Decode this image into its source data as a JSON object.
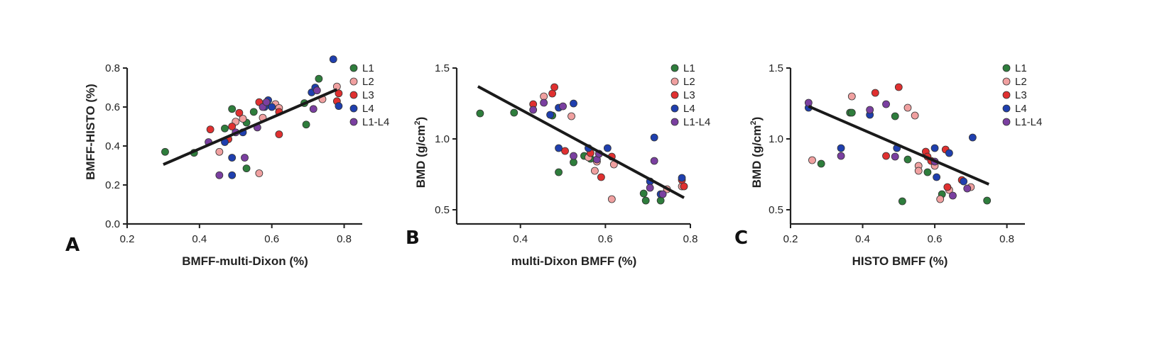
{
  "figure": {
    "colors": {
      "L1": "#2e7d3c",
      "L2": "#f0a0a0",
      "L3": "#e03030",
      "L4": "#1f3fae",
      "L1-L4": "#7a3fa0",
      "axis": "#222222",
      "fit": "#1a1a1a"
    }
  },
  "chart_data": [
    {
      "type": "scatter",
      "panel": "A",
      "xlabel": "BMFF-multi-Dixon (%)",
      "ylabel": "BMFF-HISTO (%)",
      "xlim": [
        0.2,
        0.85
      ],
      "ylim": [
        0.0,
        0.8
      ],
      "xticks": [
        "0.2",
        "0.4",
        "0.6",
        "0.8"
      ],
      "yticks": [
        "0.0",
        "0.2",
        "0.4",
        "0.6",
        "0.8"
      ],
      "xtick_values": [
        0.2,
        0.4,
        0.6,
        0.8
      ],
      "ytick_values": [
        0.0,
        0.2,
        0.4,
        0.6,
        0.8
      ],
      "legend": [
        "L1",
        "L2",
        "L3",
        "L4",
        "L1-L4"
      ],
      "legend_position": "top-right",
      "fit_line": {
        "x": [
          0.3,
          0.78
        ],
        "y": [
          0.305,
          0.69
        ]
      },
      "series": [
        {
          "name": "L1",
          "points": [
            [
              0.305,
              0.37
            ],
            [
              0.385,
              0.365
            ],
            [
              0.47,
              0.49
            ],
            [
              0.49,
              0.59
            ],
            [
              0.53,
              0.285
            ],
            [
              0.53,
              0.52
            ],
            [
              0.55,
              0.575
            ],
            [
              0.69,
              0.62
            ],
            [
              0.695,
              0.51
            ],
            [
              0.73,
              0.745
            ]
          ]
        },
        {
          "name": "L2",
          "points": [
            [
              0.455,
              0.37
            ],
            [
              0.5,
              0.525
            ],
            [
              0.52,
              0.54
            ],
            [
              0.565,
              0.26
            ],
            [
              0.575,
              0.545
            ],
            [
              0.61,
              0.615
            ],
            [
              0.62,
              0.595
            ],
            [
              0.74,
              0.64
            ],
            [
              0.78,
              0.705
            ]
          ]
        },
        {
          "name": "L3",
          "points": [
            [
              0.43,
              0.485
            ],
            [
              0.48,
              0.435
            ],
            [
              0.49,
              0.5
            ],
            [
              0.51,
              0.57
            ],
            [
              0.565,
              0.625
            ],
            [
              0.62,
              0.46
            ],
            [
              0.62,
              0.575
            ],
            [
              0.78,
              0.63
            ],
            [
              0.785,
              0.67
            ]
          ]
        },
        {
          "name": "L4",
          "points": [
            [
              0.47,
              0.42
            ],
            [
              0.49,
              0.34
            ],
            [
              0.49,
              0.25
            ],
            [
              0.52,
              0.47
            ],
            [
              0.58,
              0.6
            ],
            [
              0.59,
              0.635
            ],
            [
              0.6,
              0.6
            ],
            [
              0.71,
              0.675
            ],
            [
              0.72,
              0.7
            ],
            [
              0.77,
              0.845
            ],
            [
              0.785,
              0.605
            ]
          ]
        },
        {
          "name": "L1-L4",
          "points": [
            [
              0.425,
              0.42
            ],
            [
              0.455,
              0.25
            ],
            [
              0.5,
              0.47
            ],
            [
              0.525,
              0.34
            ],
            [
              0.56,
              0.495
            ],
            [
              0.575,
              0.6
            ],
            [
              0.585,
              0.625
            ],
            [
              0.715,
              0.59
            ],
            [
              0.725,
              0.685
            ]
          ]
        }
      ]
    },
    {
      "type": "scatter",
      "panel": "B",
      "xlabel": "multi-Dixon BMFF (%)",
      "ylabel_main": "BMD (g/cm",
      "ylabel_sup": "2",
      "ylabel_end": ")",
      "xlim": [
        0.25,
        0.8
      ],
      "ylim": [
        0.4,
        1.5
      ],
      "xticks": [
        "0.4",
        "0.6",
        "0.8"
      ],
      "yticks": [
        "0.5",
        "1.0",
        "1.5"
      ],
      "xtick_values": [
        0.4,
        0.6,
        0.8
      ],
      "ytick_values": [
        0.5,
        1.0,
        1.5
      ],
      "legend": [
        "L1",
        "L2",
        "L3",
        "L4",
        "L1-L4"
      ],
      "legend_position": "top-right",
      "fit_line": {
        "x": [
          0.3,
          0.785
        ],
        "y": [
          1.37,
          0.585
        ]
      },
      "series": [
        {
          "name": "L1",
          "points": [
            [
              0.305,
              1.18
            ],
            [
              0.385,
              1.185
            ],
            [
              0.475,
              1.165
            ],
            [
              0.49,
              0.765
            ],
            [
              0.525,
              0.835
            ],
            [
              0.55,
              0.88
            ],
            [
              0.565,
              0.86
            ],
            [
              0.69,
              0.615
            ],
            [
              0.695,
              0.565
            ],
            [
              0.73,
              0.565
            ]
          ]
        },
        {
          "name": "L2",
          "points": [
            [
              0.455,
              1.3
            ],
            [
              0.52,
              1.16
            ],
            [
              0.56,
              0.87
            ],
            [
              0.575,
              0.775
            ],
            [
              0.58,
              0.84
            ],
            [
              0.615,
              0.575
            ],
            [
              0.62,
              0.82
            ],
            [
              0.745,
              0.645
            ],
            [
              0.78,
              0.665
            ]
          ]
        },
        {
          "name": "L3",
          "points": [
            [
              0.43,
              1.245
            ],
            [
              0.475,
              1.32
            ],
            [
              0.48,
              1.365
            ],
            [
              0.505,
              0.915
            ],
            [
              0.565,
              0.9
            ],
            [
              0.59,
              0.73
            ],
            [
              0.615,
              0.875
            ],
            [
              0.78,
              0.71
            ],
            [
              0.785,
              0.665
            ]
          ]
        },
        {
          "name": "L4",
          "points": [
            [
              0.47,
              1.17
            ],
            [
              0.49,
              0.935
            ],
            [
              0.49,
              1.22
            ],
            [
              0.525,
              1.25
            ],
            [
              0.56,
              0.935
            ],
            [
              0.585,
              0.895
            ],
            [
              0.605,
              0.935
            ],
            [
              0.705,
              0.7
            ],
            [
              0.715,
              1.01
            ],
            [
              0.73,
              0.61
            ],
            [
              0.78,
              0.725
            ]
          ]
        },
        {
          "name": "L1-L4",
          "points": [
            [
              0.43,
              1.205
            ],
            [
              0.455,
              1.255
            ],
            [
              0.5,
              1.23
            ],
            [
              0.525,
              0.88
            ],
            [
              0.58,
              0.855
            ],
            [
              0.585,
              0.895
            ],
            [
              0.705,
              0.655
            ],
            [
              0.715,
              0.845
            ],
            [
              0.735,
              0.61
            ]
          ]
        }
      ]
    },
    {
      "type": "scatter",
      "panel": "C",
      "xlabel": "HISTO BMFF (%)",
      "ylabel_main": "BMD (g/cm",
      "ylabel_sup": "2",
      "ylabel_end": ")",
      "xlim": [
        0.2,
        0.85
      ],
      "ylim": [
        0.4,
        1.5
      ],
      "xticks": [
        "0.2",
        "0.4",
        "0.6",
        "0.8"
      ],
      "yticks": [
        "0.5",
        "1.0",
        "1.5"
      ],
      "xtick_values": [
        0.2,
        0.4,
        0.6,
        0.8
      ],
      "ytick_values": [
        0.5,
        1.0,
        1.5
      ],
      "legend": [
        "L1",
        "L2",
        "L3",
        "L4",
        "L1-L4"
      ],
      "legend_position": "top-right",
      "fit_line": {
        "x": [
          0.25,
          0.75
        ],
        "y": [
          1.23,
          0.68
        ]
      },
      "series": [
        {
          "name": "L1",
          "points": [
            [
              0.285,
              0.825
            ],
            [
              0.365,
              1.185
            ],
            [
              0.37,
              1.185
            ],
            [
              0.49,
              1.16
            ],
            [
              0.51,
              0.56
            ],
            [
              0.525,
              0.855
            ],
            [
              0.58,
              0.765
            ],
            [
              0.62,
              0.61
            ],
            [
              0.745,
              0.565
            ]
          ]
        },
        {
          "name": "L2",
          "points": [
            [
              0.26,
              0.85
            ],
            [
              0.37,
              1.3
            ],
            [
              0.525,
              1.22
            ],
            [
              0.545,
              1.165
            ],
            [
              0.555,
              0.81
            ],
            [
              0.555,
              0.775
            ],
            [
              0.6,
              0.81
            ],
            [
              0.615,
              0.575
            ],
            [
              0.64,
              0.64
            ],
            [
              0.7,
              0.66
            ]
          ]
        },
        {
          "name": "L3",
          "points": [
            [
              0.435,
              1.325
            ],
            [
              0.465,
              0.88
            ],
            [
              0.5,
              1.365
            ],
            [
              0.575,
              0.91
            ],
            [
              0.58,
              0.875
            ],
            [
              0.59,
              0.845
            ],
            [
              0.635,
              0.66
            ],
            [
              0.63,
              0.925
            ],
            [
              0.675,
              0.71
            ]
          ]
        },
        {
          "name": "L4",
          "points": [
            [
              0.25,
              1.22
            ],
            [
              0.34,
              0.935
            ],
            [
              0.42,
              1.17
            ],
            [
              0.495,
              0.935
            ],
            [
              0.6,
              0.935
            ],
            [
              0.605,
              0.73
            ],
            [
              0.64,
              0.9
            ],
            [
              0.68,
              0.7
            ],
            [
              0.705,
              1.01
            ]
          ]
        },
        {
          "name": "L1-L4",
          "points": [
            [
              0.25,
              1.255
            ],
            [
              0.34,
              0.88
            ],
            [
              0.42,
              1.205
            ],
            [
              0.465,
              1.245
            ],
            [
              0.49,
              0.875
            ],
            [
              0.6,
              0.84
            ],
            [
              0.65,
              0.6
            ],
            [
              0.69,
              0.65
            ]
          ]
        }
      ]
    }
  ]
}
